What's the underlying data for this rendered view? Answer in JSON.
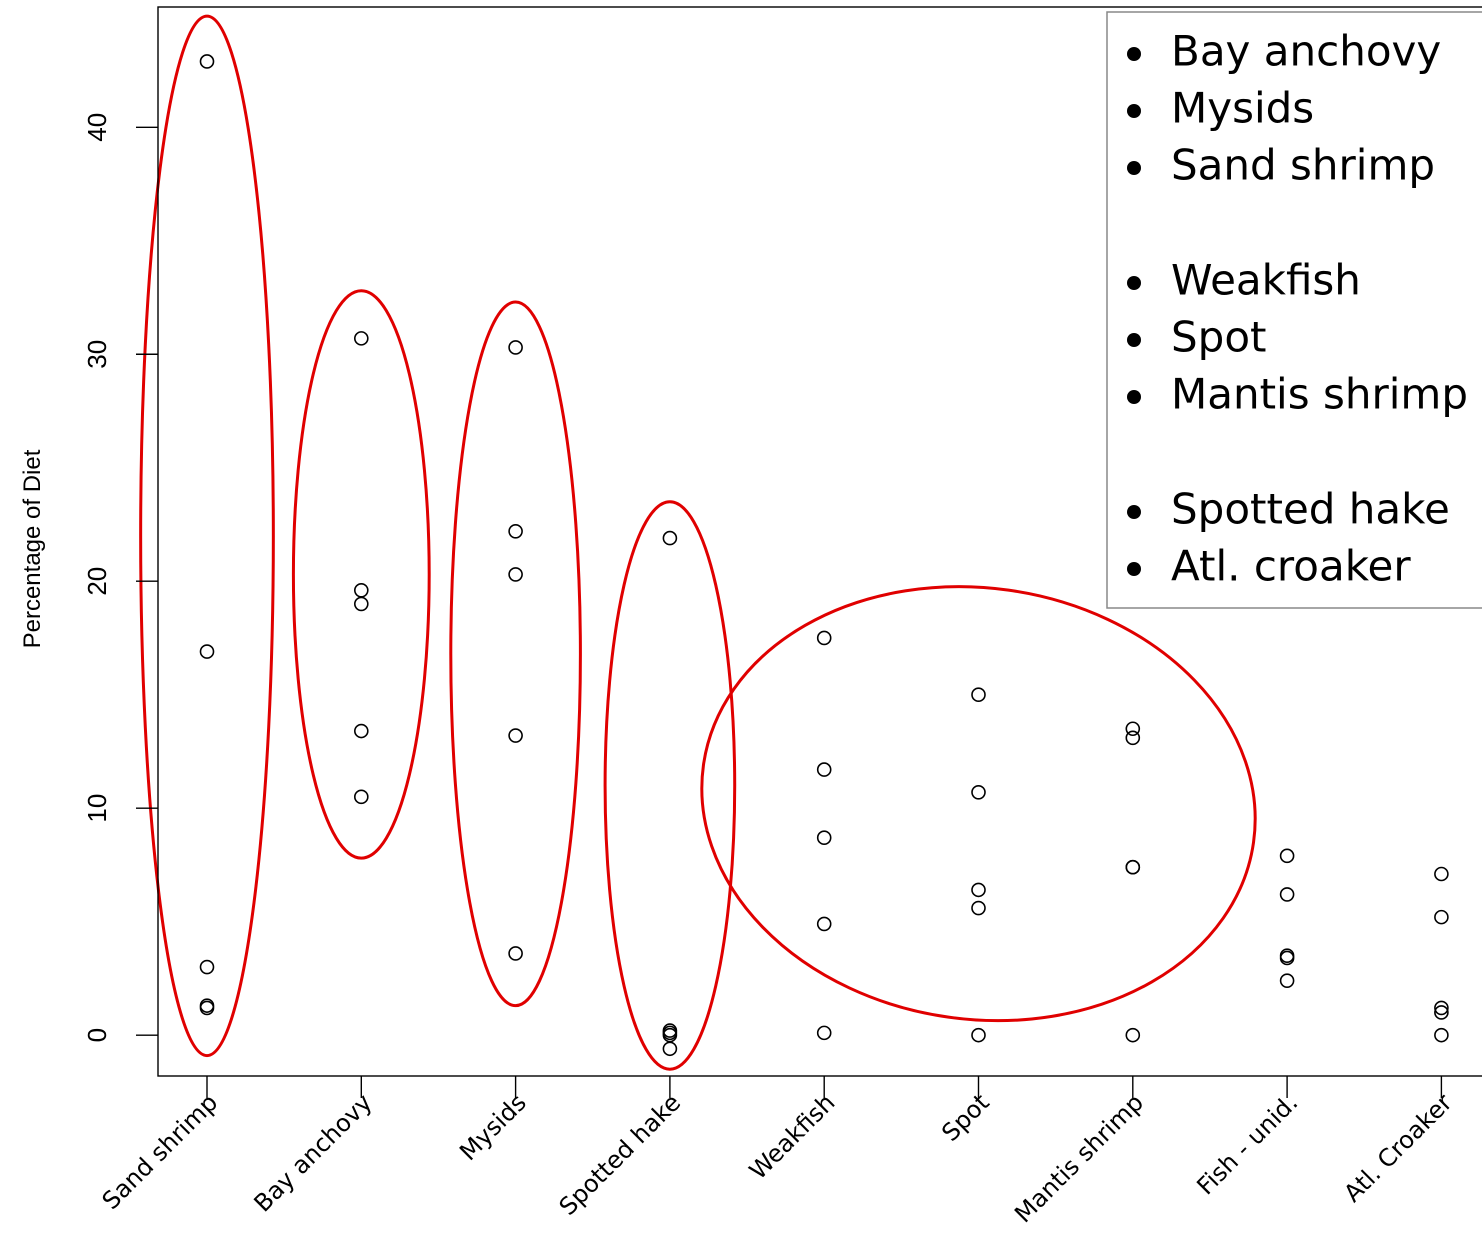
{
  "chart_data": {
    "type": "scatter",
    "ylabel": "Percentage of Diet",
    "xlabel": "",
    "ylim": [
      -1.8,
      45.3
    ],
    "yticks": [
      0,
      10,
      20,
      30,
      40
    ],
    "categories": [
      "Sand shrimp",
      "Bay anchovy",
      "Mysids",
      "Spotted hake",
      "Weakfish",
      "Spot",
      "Mantis shrimp",
      "Fish - unid.",
      "Atl. Croaker"
    ],
    "points": [
      [
        42.9,
        16.9,
        3.0,
        1.3,
        1.2
      ],
      [
        30.7,
        19.6,
        19.0,
        13.4,
        10.5
      ],
      [
        30.3,
        22.2,
        20.3,
        13.2,
        3.6
      ],
      [
        21.9,
        0.2,
        0.1,
        0.0,
        -0.6
      ],
      [
        17.5,
        11.7,
        8.7,
        4.9,
        0.1
      ],
      [
        15.0,
        10.7,
        6.4,
        5.6,
        0.0
      ],
      [
        13.5,
        13.1,
        7.4,
        7.4,
        0.0
      ],
      [
        7.9,
        6.2,
        3.4,
        3.5,
        2.4
      ],
      [
        7.1,
        5.2,
        1.2,
        1.0,
        0.0
      ]
    ],
    "group_ellipses": [
      {
        "category_center": 0,
        "category_half_width": 0.43,
        "y_center": 22.0,
        "y_half_height": 22.9
      },
      {
        "category_center": 1,
        "category_half_width": 0.44,
        "y_center": 20.3,
        "y_half_height": 12.5
      },
      {
        "category_center": 2,
        "category_half_width": 0.42,
        "y_center": 16.8,
        "y_half_height": 15.5
      },
      {
        "category_center": 3,
        "category_half_width": 0.42,
        "y_center": 11.0,
        "y_half_height": 12.5
      },
      {
        "category_center": 5,
        "category_half_width": 1.8,
        "y_center": 10.2,
        "y_half_height": 9.5,
        "rotation_deg": 8
      }
    ],
    "legend": {
      "position": "top-right",
      "groups": [
        [
          "Bay anchovy",
          "Mysids",
          "Sand shrimp"
        ],
        [
          "Weakfish",
          "Spot",
          "Mantis shrimp"
        ],
        [
          "Spotted hake",
          "Atl. croaker"
        ]
      ]
    },
    "colors": {
      "points": "#000000",
      "ellipses": "#e00000",
      "legend_border": "#888888"
    }
  }
}
